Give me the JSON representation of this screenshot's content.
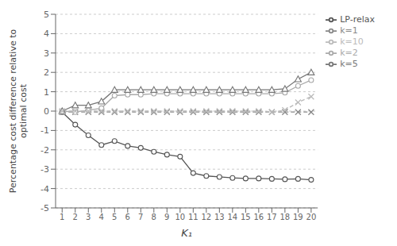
{
  "chart_data": {
    "type": "line",
    "x": [
      1,
      2,
      3,
      4,
      5,
      6,
      7,
      8,
      9,
      10,
      11,
      12,
      13,
      14,
      15,
      16,
      17,
      18,
      19,
      20
    ],
    "series": [
      {
        "name": "LP-relax",
        "color": "#555555",
        "marker": "circle",
        "line_style": "solid",
        "values": [
          -0.05,
          -0.7,
          -1.25,
          -1.75,
          -1.55,
          -1.8,
          -1.9,
          -2.1,
          -2.25,
          -2.35,
          -3.2,
          -3.35,
          -3.4,
          -3.45,
          -3.48,
          -3.48,
          -3.5,
          -3.52,
          -3.5,
          -3.55
        ]
      },
      {
        "name": "k=1",
        "color": "#888888",
        "marker": "x",
        "line_style": "dashed",
        "values": [
          -0.05,
          -0.05,
          -0.05,
          -0.05,
          -0.05,
          -0.05,
          -0.05,
          -0.05,
          -0.05,
          -0.05,
          -0.05,
          -0.05,
          -0.05,
          -0.05,
          -0.05,
          -0.05,
          -0.05,
          -0.05,
          -0.05,
          -0.05
        ]
      },
      {
        "name": "k=2",
        "color": "#aaaaaa",
        "marker": "circle",
        "line_style": "solid",
        "values": [
          0.0,
          -0.05,
          0.05,
          0.15,
          0.8,
          0.85,
          0.85,
          0.9,
          0.9,
          0.9,
          0.9,
          0.9,
          0.9,
          0.9,
          0.9,
          0.9,
          0.9,
          0.95,
          1.3,
          1.6
        ]
      },
      {
        "name": "k=5",
        "color": "#777777",
        "marker": "triangle",
        "line_style": "solid",
        "values": [
          0.0,
          0.3,
          0.3,
          0.5,
          1.1,
          1.1,
          1.1,
          1.1,
          1.1,
          1.1,
          1.1,
          1.1,
          1.1,
          1.1,
          1.1,
          1.1,
          1.1,
          1.15,
          1.65,
          2.0
        ]
      },
      {
        "name": "k=10",
        "color": "#bbbbbb",
        "marker": "x",
        "line_style": "dashed",
        "values": [
          0.0,
          0.0,
          0.0,
          0.0,
          0.0,
          0.0,
          0.0,
          0.0,
          0.0,
          0.0,
          0.0,
          0.0,
          0.0,
          0.0,
          0.0,
          0.0,
          -0.05,
          0.05,
          0.45,
          0.75
        ]
      }
    ],
    "xlabel": "K₁",
    "ylabel": "Percentage cost difference relative to\noptimal cost",
    "xlim": [
      0.5,
      20.5
    ],
    "xticks": [
      1,
      2,
      3,
      4,
      5,
      6,
      7,
      8,
      9,
      10,
      11,
      12,
      13,
      14,
      15,
      16,
      17,
      18,
      19,
      20
    ],
    "ylim": [
      -5,
      5
    ],
    "yticks": [
      -5,
      -4,
      -3,
      -2,
      -1,
      0,
      1,
      2,
      3,
      4,
      5
    ],
    "grid": "y",
    "legend": "upper right"
  }
}
